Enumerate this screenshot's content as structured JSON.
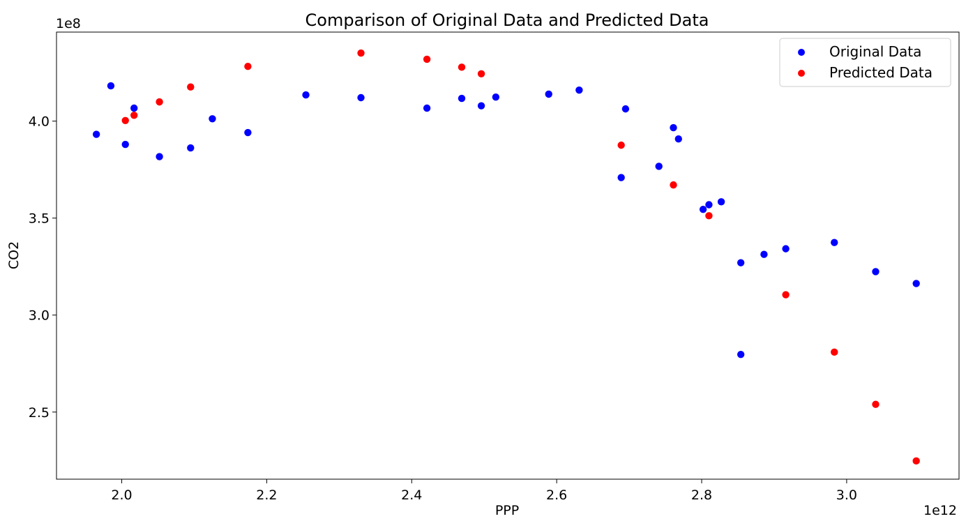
{
  "chart_data": {
    "type": "scatter",
    "title": "Comparison of Original Data and Predicted Data",
    "xlabel": "PPP",
    "ylabel": "CO2",
    "x_offset_label": "1e12",
    "y_offset_label": "1e8",
    "xlim": [
      1.91,
      3.155
    ],
    "ylim": [
      2.154,
      4.459
    ],
    "x_ticks": [
      2.0,
      2.2,
      2.4,
      2.6,
      2.8,
      3.0
    ],
    "x_tick_labels": [
      "2.0",
      "2.2",
      "2.4",
      "2.6",
      "2.8",
      "3.0"
    ],
    "y_ticks": [
      2.5,
      3.0,
      3.5,
      4.0
    ],
    "y_tick_labels": [
      "2.5",
      "3.0",
      "3.5",
      "4.0"
    ],
    "grid": false,
    "legend_position": "top-right",
    "series": [
      {
        "name": "Original Data",
        "color": "#0000ff",
        "points": [
          [
            1.965,
            3.932
          ],
          [
            1.985,
            4.182
          ],
          [
            2.005,
            3.88
          ],
          [
            2.017,
            4.067
          ],
          [
            2.052,
            3.817
          ],
          [
            2.095,
            3.862
          ],
          [
            2.125,
            4.012
          ],
          [
            2.174,
            3.941
          ],
          [
            2.254,
            4.135
          ],
          [
            2.33,
            4.121
          ],
          [
            2.421,
            4.067
          ],
          [
            2.469,
            4.117
          ],
          [
            2.496,
            4.079
          ],
          [
            2.516,
            4.124
          ],
          [
            2.589,
            4.139
          ],
          [
            2.631,
            4.16
          ],
          [
            2.689,
            3.709
          ],
          [
            2.695,
            4.063
          ],
          [
            2.741,
            3.767
          ],
          [
            2.761,
            3.966
          ],
          [
            2.768,
            3.908
          ],
          [
            2.802,
            3.545
          ],
          [
            2.81,
            3.569
          ],
          [
            2.827,
            3.584
          ],
          [
            2.854,
            3.27
          ],
          [
            2.854,
            2.797
          ],
          [
            2.886,
            3.313
          ],
          [
            2.916,
            3.342
          ],
          [
            2.983,
            3.374
          ],
          [
            3.04,
            3.224
          ],
          [
            3.096,
            3.163
          ]
        ]
      },
      {
        "name": "Predicted Data",
        "color": "#ff0000",
        "points": [
          [
            2.005,
            4.003
          ],
          [
            2.017,
            4.03
          ],
          [
            2.052,
            4.099
          ],
          [
            2.095,
            4.176
          ],
          [
            2.174,
            4.282
          ],
          [
            2.33,
            4.351
          ],
          [
            2.421,
            4.319
          ],
          [
            2.469,
            4.278
          ],
          [
            2.496,
            4.244
          ],
          [
            2.689,
            3.876
          ],
          [
            2.761,
            3.671
          ],
          [
            2.81,
            3.512
          ],
          [
            2.916,
            3.105
          ],
          [
            2.983,
            2.809
          ],
          [
            3.04,
            2.54
          ],
          [
            3.096,
            2.248
          ]
        ]
      }
    ]
  }
}
